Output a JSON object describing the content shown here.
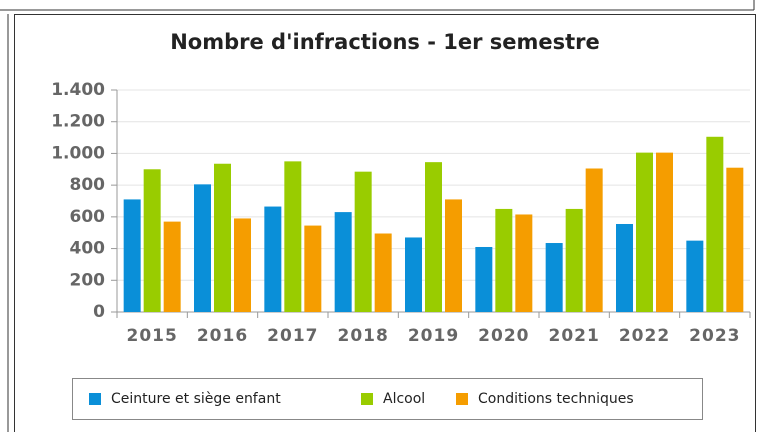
{
  "chart_data": {
    "type": "bar",
    "title": "Nombre d'infractions - 1er semestre",
    "categories": [
      "2015",
      "2016",
      "2017",
      "2018",
      "2019",
      "2020",
      "2021",
      "2022",
      "2023"
    ],
    "series": [
      {
        "name": "Ceinture et siège enfant",
        "color": "#0a8fd8",
        "values": [
          710,
          805,
          665,
          630,
          470,
          410,
          435,
          555,
          450
        ]
      },
      {
        "name": "Alcool",
        "color": "#99cc00",
        "values": [
          900,
          935,
          950,
          885,
          945,
          650,
          650,
          1005,
          1105
        ]
      },
      {
        "name": "Conditions techniques",
        "color": "#f59d00",
        "values": [
          570,
          590,
          545,
          495,
          710,
          615,
          905,
          1005,
          910
        ]
      }
    ],
    "ylim": [
      0,
      1400
    ],
    "yticks": [
      0,
      200,
      400,
      600,
      800,
      {
        "value": 1000,
        "label": "1.000"
      },
      {
        "value": 1200,
        "label": "1.200"
      },
      {
        "value": 1400,
        "label": "1.400"
      }
    ],
    "grid": true,
    "legend": "bottom"
  }
}
